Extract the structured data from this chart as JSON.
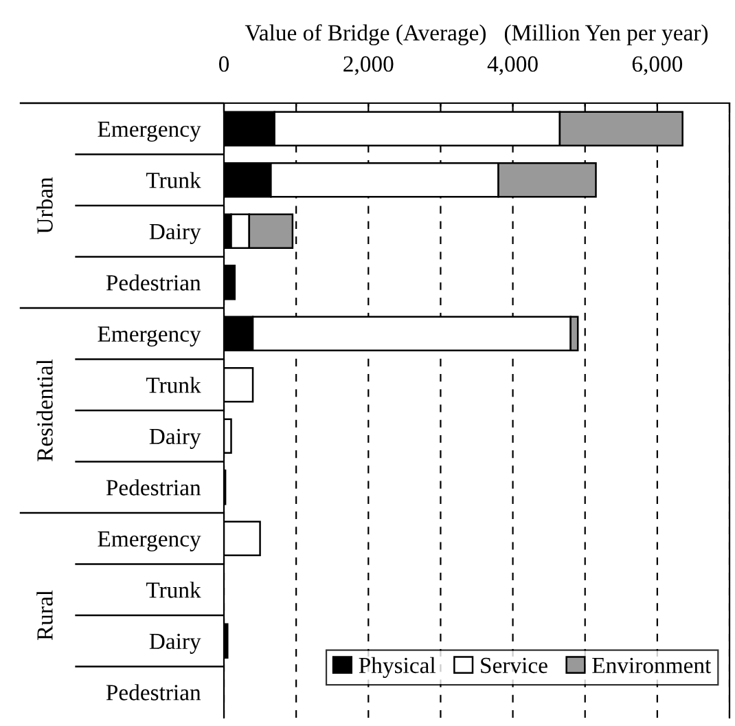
{
  "chart_data": {
    "type": "bar",
    "orientation": "horizontal",
    "stacked": true,
    "xlabel": "Value of Bridge (Average)   (Million Yen per year)",
    "categories": [
      "Emergency",
      "Trunk",
      "Dairy",
      "Pedestrian",
      "Emergency",
      "Trunk",
      "Dairy",
      "Pedestrian",
      "Emergency",
      "Trunk",
      "Dairy",
      "Pedestrian"
    ],
    "series": [
      {
        "name": "Physical",
        "color": "#000000",
        "values": [
          700,
          650,
          100,
          150,
          400,
          null,
          null,
          20,
          null,
          null,
          50,
          null
        ]
      },
      {
        "name": "Service",
        "color": "#ffffff",
        "values": [
          3950,
          3150,
          250,
          null,
          4400,
          400,
          100,
          null,
          500,
          null,
          null,
          null
        ]
      },
      {
        "name": "Environment",
        "color": "#999999",
        "values": [
          1700,
          1350,
          600,
          null,
          100,
          null,
          null,
          null,
          null,
          null,
          null,
          null
        ]
      }
    ],
    "annotations": [
      "Urban",
      "Residential",
      "Rural"
    ],
    "xlim": [
      0,
      7000
    ],
    "xticks": [
      0,
      {
        "value": 1000,
        "label": null
      },
      {
        "value": 2000,
        "label": "2,000"
      },
      {
        "value": 3000,
        "label": null
      },
      {
        "value": 4000,
        "label": "4,000"
      },
      {
        "value": 5000,
        "label": null
      },
      {
        "value": 6000,
        "label": "6,000"
      },
      {
        "value": 7000,
        "label": null
      }
    ],
    "grid": "x",
    "legend": "bottom right"
  }
}
